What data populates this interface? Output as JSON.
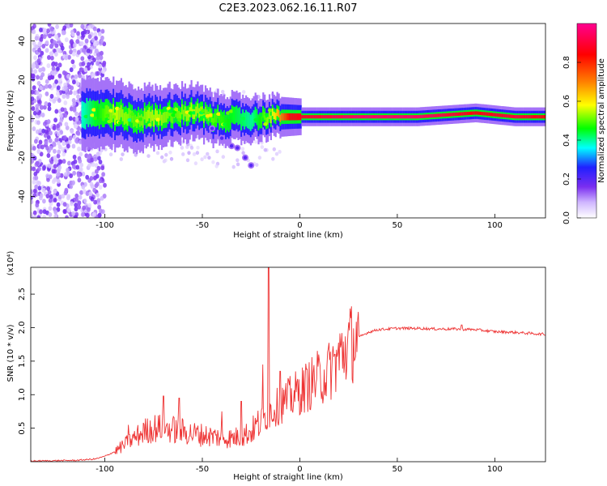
{
  "figure": {
    "title": "C2E3.2023.062.16.11.R07"
  },
  "chart_data": [
    {
      "type": "heatmap",
      "name": "spectrogram",
      "xlabel": "Height of straight line (km)",
      "ylabel": "Frequency (Hz)",
      "xlim": [
        -138,
        126
      ],
      "ylim": [
        -51,
        49
      ],
      "xticks": [
        -100,
        -50,
        0,
        50,
        100
      ],
      "yticks": [
        -40,
        -20,
        0,
        20,
        40
      ],
      "colorbar": {
        "label": "Normalized spectral amplitude",
        "range": [
          0,
          1
        ],
        "ticks": [
          "0.0",
          "0.2",
          "0.4",
          "0.6",
          "0.8"
        ],
        "colors": [
          "#ffffff",
          "#cfb6ff",
          "#7a2ef0",
          "#2020ff",
          "#00ffff",
          "#00ff00",
          "#ffff00",
          "#ff8000",
          "#ff0000",
          "#ff0090"
        ]
      },
      "ridge": [
        {
          "x": -105,
          "f": 3,
          "amp": 0.45
        },
        {
          "x": -95,
          "f": 2,
          "amp": 0.55
        },
        {
          "x": -85,
          "f": 0,
          "amp": 0.5
        },
        {
          "x": -75,
          "f": 1,
          "amp": 0.55
        },
        {
          "x": -65,
          "f": 2,
          "amp": 0.5
        },
        {
          "x": -55,
          "f": 4,
          "amp": 0.55
        },
        {
          "x": -45,
          "f": 0,
          "amp": 0.5
        },
        {
          "x": -35,
          "f": 0,
          "amp": 0.45
        },
        {
          "x": -25,
          "f": 0,
          "amp": 0.4
        },
        {
          "x": -15,
          "f": 1,
          "amp": 0.55
        },
        {
          "x": -5,
          "f": 1,
          "amp": 0.85
        },
        {
          "x": 10,
          "f": 1,
          "amp": 0.9
        },
        {
          "x": 30,
          "f": 1,
          "amp": 0.95
        },
        {
          "x": 60,
          "f": 1,
          "amp": 0.95
        },
        {
          "x": 90,
          "f": 3,
          "amp": 0.85
        },
        {
          "x": 110,
          "f": 1,
          "amp": 0.9
        },
        {
          "x": 126,
          "f": 1,
          "amp": 0.85
        }
      ]
    },
    {
      "type": "line",
      "name": "snr",
      "xlabel": "Height of straight line (km)",
      "ylabel": "SNR (10 * v/v)",
      "yunit": "(x10⁴)",
      "xlim": [
        -138,
        126
      ],
      "ylim": [
        0,
        2.9
      ],
      "xticks": [
        -100,
        -50,
        0,
        50,
        100
      ],
      "yticks": [
        "0.5",
        "1.0",
        "1.5",
        "2.0",
        "2.5"
      ],
      "color": "#ee3333",
      "envelope": [
        [
          -138,
          0.01
        ],
        [
          -115,
          0.02
        ],
        [
          -105,
          0.04
        ],
        [
          -100,
          0.08
        ],
        [
          -95,
          0.15
        ],
        [
          -90,
          0.25
        ],
        [
          -85,
          0.35
        ],
        [
          -80,
          0.45
        ],
        [
          -75,
          0.5
        ],
        [
          -70,
          0.5
        ],
        [
          -65,
          0.48
        ],
        [
          -60,
          0.45
        ],
        [
          -55,
          0.42
        ],
        [
          -50,
          0.4
        ],
        [
          -45,
          0.38
        ],
        [
          -40,
          0.36
        ],
        [
          -35,
          0.35
        ],
        [
          -30,
          0.38
        ],
        [
          -25,
          0.45
        ],
        [
          -20,
          0.6
        ],
        [
          -15,
          0.75
        ],
        [
          -10,
          0.85
        ],
        [
          -5,
          0.95
        ],
        [
          0,
          1.05
        ],
        [
          5,
          1.15
        ],
        [
          10,
          1.25
        ],
        [
          15,
          1.35
        ],
        [
          20,
          1.55
        ],
        [
          25,
          1.75
        ],
        [
          30,
          1.85
        ],
        [
          35,
          1.93
        ],
        [
          40,
          1.97
        ],
        [
          50,
          1.99
        ],
        [
          60,
          1.99
        ],
        [
          70,
          1.98
        ],
        [
          80,
          1.98
        ],
        [
          90,
          1.97
        ],
        [
          100,
          1.94
        ],
        [
          110,
          1.93
        ],
        [
          120,
          1.91
        ],
        [
          126,
          1.9
        ]
      ],
      "peaks": [
        {
          "x": -88,
          "y": 0.55
        },
        {
          "x": -70,
          "y": 0.98
        },
        {
          "x": -62,
          "y": 0.95
        },
        {
          "x": -40,
          "y": 0.75
        },
        {
          "x": -30,
          "y": 0.9
        },
        {
          "x": -19,
          "y": 1.45
        },
        {
          "x": -16,
          "y": 2.9
        },
        {
          "x": -10,
          "y": 1.35
        },
        {
          "x": 10,
          "y": 1.5
        },
        {
          "x": 18,
          "y": 1.6
        },
        {
          "x": 83,
          "y": 2.04
        }
      ]
    }
  ]
}
